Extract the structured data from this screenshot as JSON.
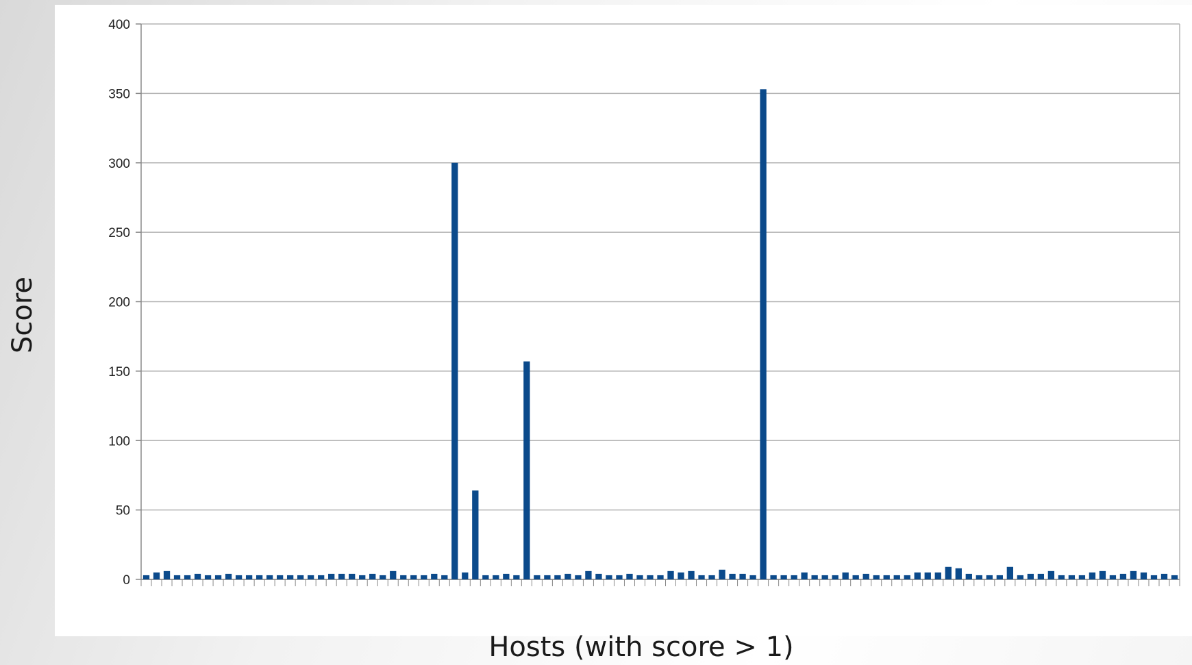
{
  "chart_data": {
    "type": "bar",
    "title": "",
    "xlabel": "Hosts (with score > 1)",
    "ylabel": "Score",
    "ylim": [
      0,
      400
    ],
    "yticks": [
      0,
      50,
      100,
      150,
      200,
      250,
      300,
      350,
      400
    ],
    "grid": true,
    "legend": "none",
    "bar_color": "#0b4a8b",
    "values": [
      3,
      5,
      6,
      3,
      3,
      4,
      3,
      3,
      4,
      3,
      3,
      3,
      3,
      3,
      3,
      3,
      3,
      3,
      4,
      4,
      4,
      3,
      4,
      3,
      6,
      3,
      3,
      3,
      4,
      3,
      300,
      5,
      64,
      3,
      3,
      4,
      3,
      157,
      3,
      3,
      3,
      4,
      3,
      6,
      4,
      3,
      3,
      4,
      3,
      3,
      3,
      6,
      5,
      6,
      3,
      3,
      7,
      4,
      4,
      3,
      353,
      3,
      3,
      3,
      5,
      3,
      3,
      3,
      5,
      3,
      4,
      3,
      3,
      3,
      3,
      5,
      5,
      5,
      9,
      8,
      4,
      3,
      3,
      3,
      9,
      3,
      4,
      4,
      6,
      3,
      3,
      3,
      5,
      6,
      3,
      4,
      6,
      5,
      3,
      4,
      3
    ]
  }
}
